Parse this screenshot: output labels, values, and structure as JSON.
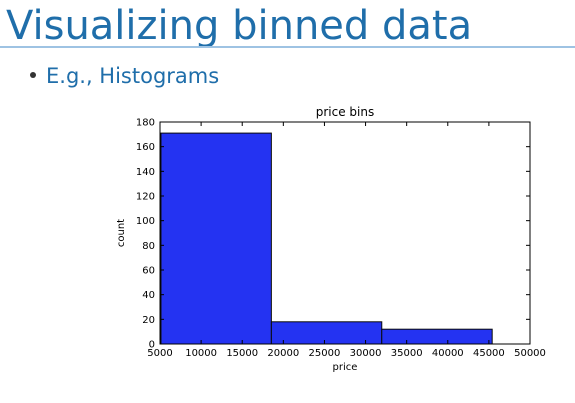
{
  "slide": {
    "title": "Visualizing binned data",
    "bullet": "E.g., Histograms"
  },
  "colors": {
    "title": "#1f6eaa",
    "bar_fill": "#2433f2",
    "bar_edge": "#0a0a0a"
  },
  "chart_data": {
    "type": "bar",
    "title": "price bins",
    "xlabel": "price",
    "ylabel": "count",
    "xlim": [
      5000,
      50000
    ],
    "ylim": [
      0,
      180
    ],
    "x_ticks": [
      "5000",
      "10000",
      "15000",
      "20000",
      "25000",
      "30000",
      "35000",
      "40000",
      "45000",
      "50000"
    ],
    "y_ticks": [
      "0",
      "20",
      "40",
      "60",
      "80",
      "100",
      "120",
      "140",
      "160",
      "180"
    ],
    "bins": [
      {
        "start": 5118,
        "end": 18545,
        "count": 171
      },
      {
        "start": 18545,
        "end": 31972,
        "count": 18
      },
      {
        "start": 31972,
        "end": 45400,
        "count": 12
      }
    ],
    "grid": false,
    "legend": "none"
  }
}
